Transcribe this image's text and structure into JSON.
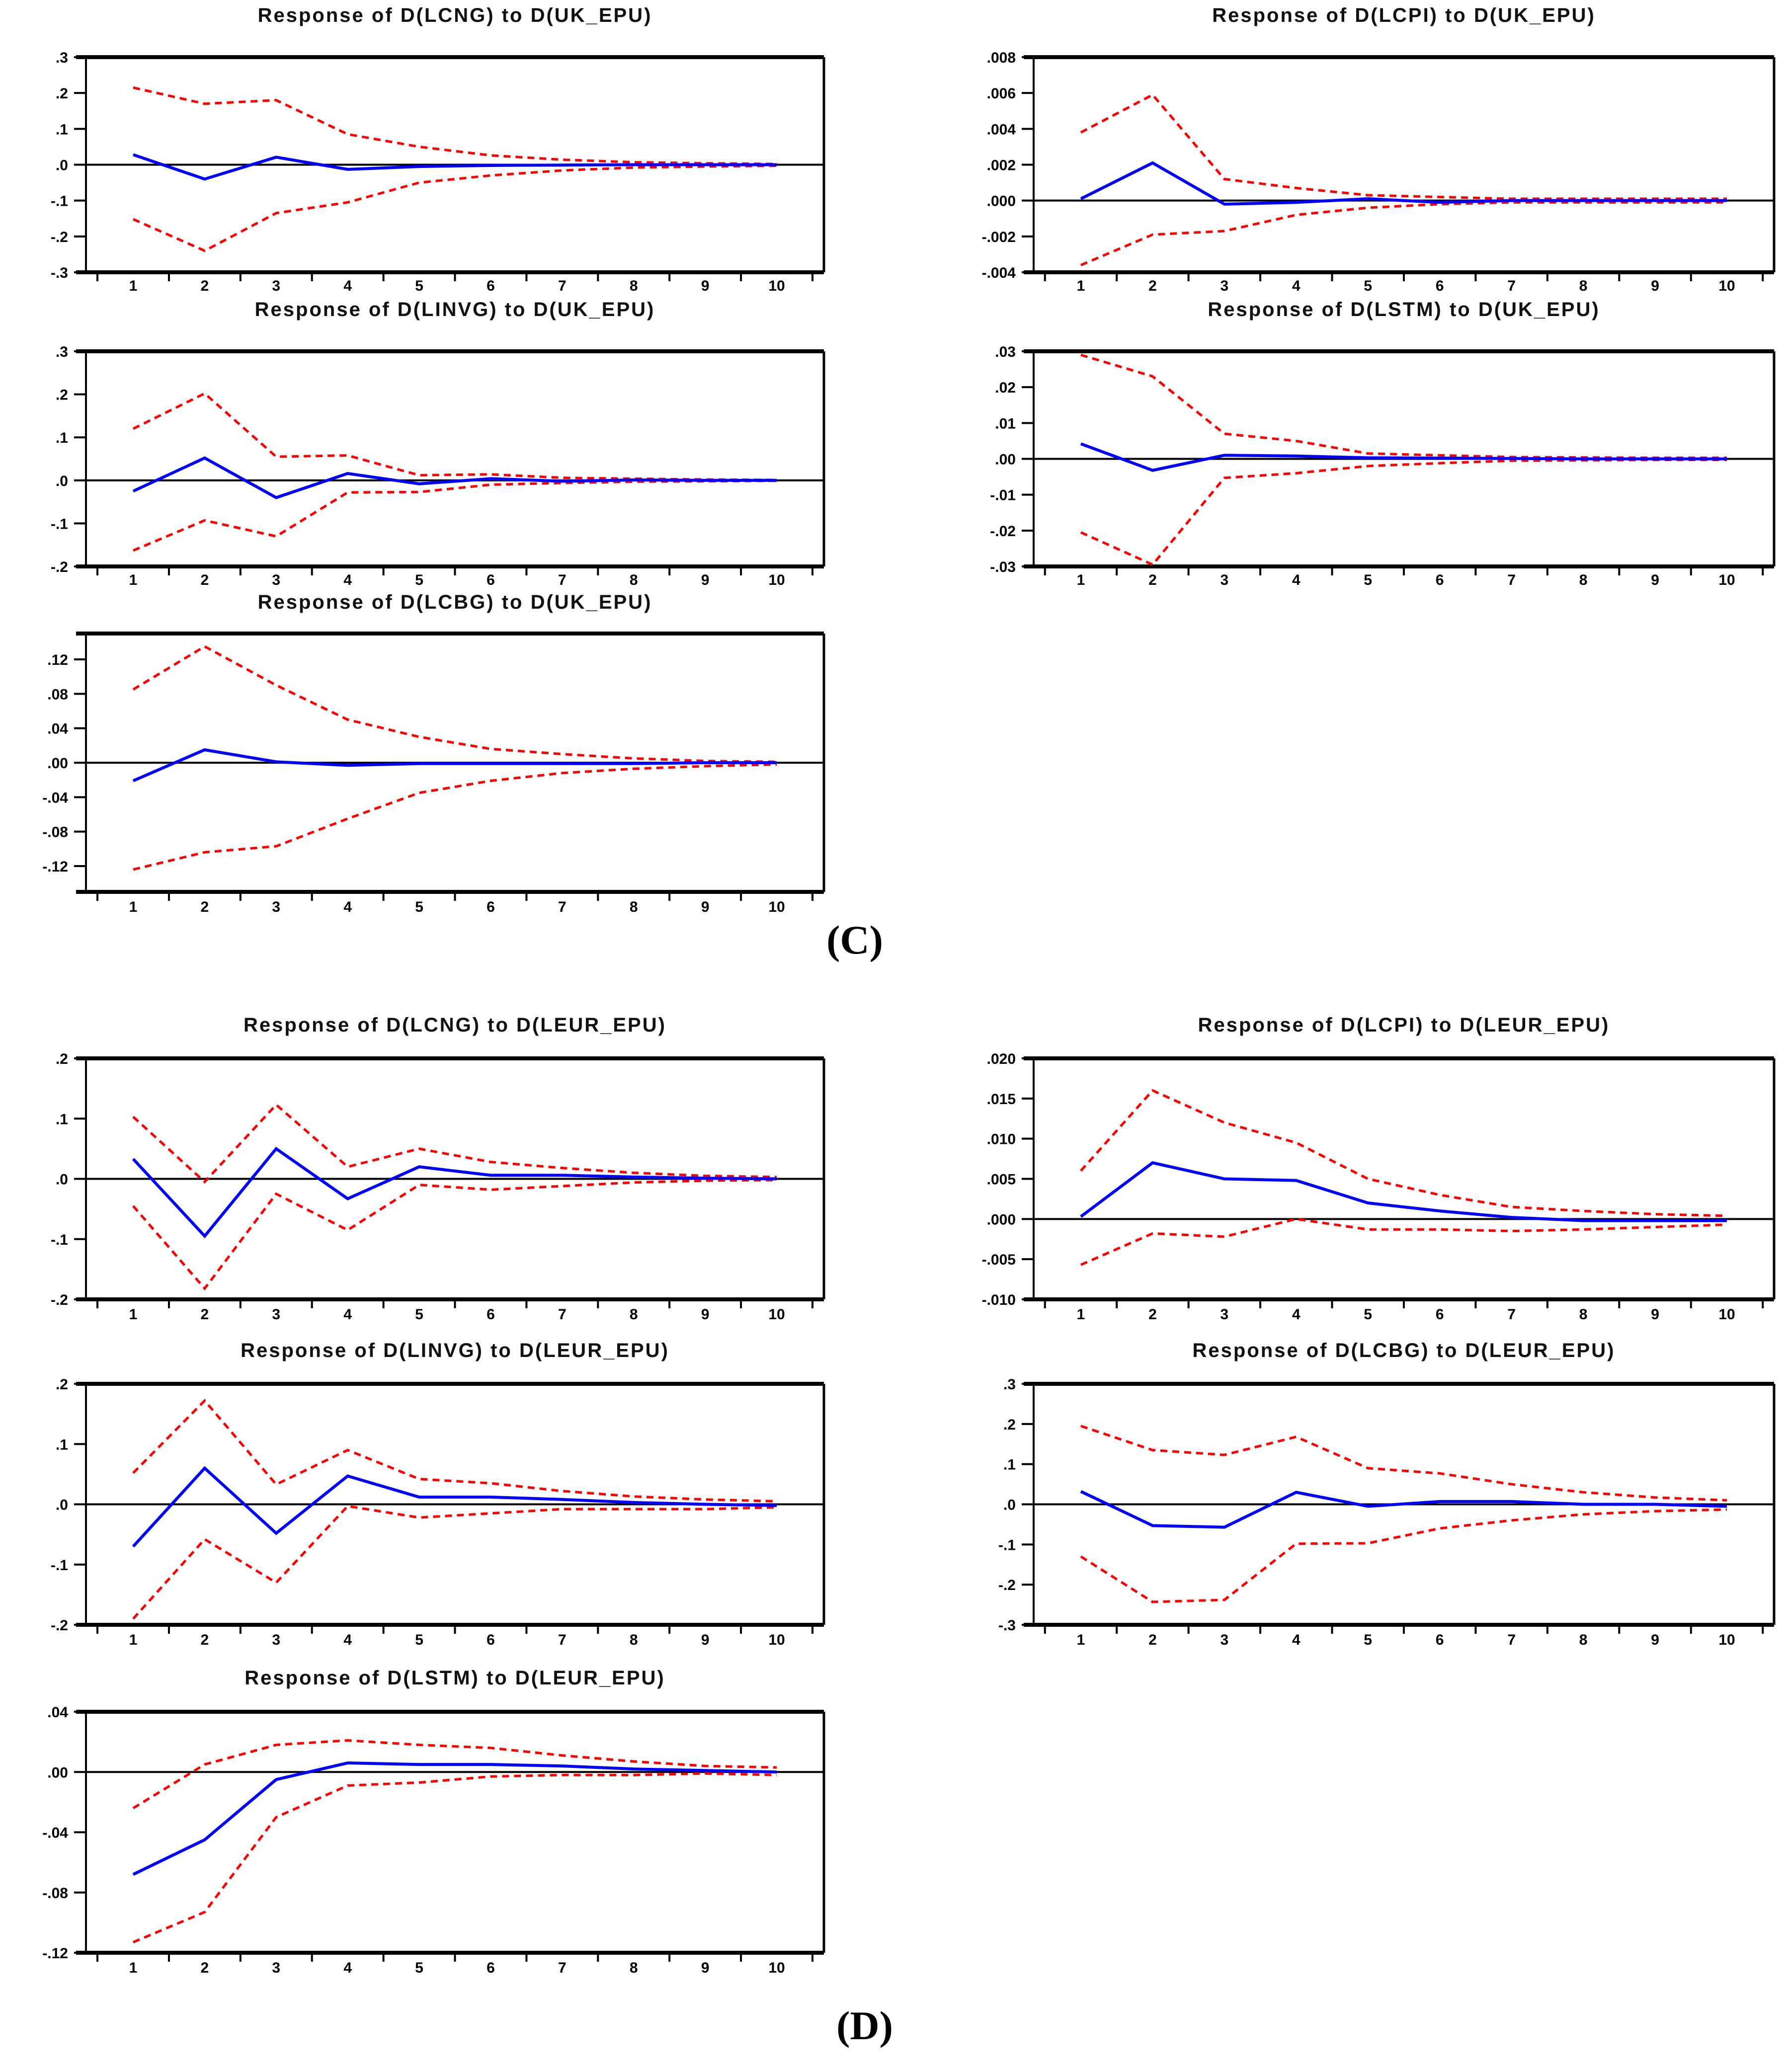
{
  "figure": {
    "description": "Impulse response function charts with blue response line and red dashed confidence bands",
    "x_axis_labels": [
      "1",
      "2",
      "3",
      "4",
      "5",
      "6",
      "7",
      "8",
      "9",
      "10"
    ],
    "response_color": "#0000ff",
    "band_color": "#ff0000",
    "axis_color": "#000000"
  },
  "panel_c_label": "(C)",
  "panel_d_label": "(D)",
  "chart_data": [
    {
      "type": "line",
      "panel": "C",
      "title": "Response of D(LCNG) to D(UK_EPU)",
      "x": [
        1,
        2,
        3,
        4,
        5,
        6,
        7,
        8,
        9,
        10
      ],
      "ylim": [
        -0.3,
        0.3
      ],
      "yticks": [
        {
          "v": 0.3,
          "label": ".3"
        },
        {
          "v": 0.2,
          "label": ".2"
        },
        {
          "v": 0.1,
          "label": ".1"
        },
        {
          "v": 0.0,
          "label": ".0"
        },
        {
          "v": -0.1,
          "label": "-.1"
        },
        {
          "v": -0.2,
          "label": "-.2"
        },
        {
          "v": -0.3,
          "label": "-.3"
        }
      ],
      "series": [
        {
          "name": "response",
          "values": [
            0.028,
            -0.04,
            0.021,
            -0.013,
            -0.005,
            -0.002,
            -0.001,
            0,
            0,
            0
          ]
        },
        {
          "name": "upper_band",
          "values": [
            0.215,
            0.17,
            0.18,
            0.085,
            0.05,
            0.026,
            0.014,
            0.007,
            0.004,
            0.002
          ]
        },
        {
          "name": "lower_band",
          "values": [
            -0.152,
            -0.24,
            -0.135,
            -0.105,
            -0.05,
            -0.03,
            -0.016,
            -0.008,
            -0.005,
            -0.003
          ]
        }
      ]
    },
    {
      "type": "line",
      "panel": "C",
      "title": "Response of D(LCPI) to D(UK_EPU)",
      "x": [
        1,
        2,
        3,
        4,
        5,
        6,
        7,
        8,
        9,
        10
      ],
      "ylim": [
        -0.004,
        0.008
      ],
      "yticks": [
        {
          "v": 0.008,
          "label": ".008"
        },
        {
          "v": 0.006,
          "label": ".006"
        },
        {
          "v": 0.004,
          "label": ".004"
        },
        {
          "v": 0.002,
          "label": ".002"
        },
        {
          "v": 0.0,
          "label": ".000"
        },
        {
          "v": -0.002,
          "label": "-.002"
        },
        {
          "v": -0.004,
          "label": "-.004"
        }
      ],
      "series": [
        {
          "name": "response",
          "values": [
            0.0001,
            0.0021,
            -0.0002,
            -0.0001,
            0.0001,
            -0.0001,
            0,
            0,
            0,
            0
          ]
        },
        {
          "name": "upper_band",
          "values": [
            0.0038,
            0.0059,
            0.0012,
            0.0007,
            0.0003,
            0.0002,
            0.0001,
            0.0001,
            0.0001,
            0.0001
          ]
        },
        {
          "name": "lower_band",
          "values": [
            -0.0036,
            -0.0019,
            -0.0017,
            -0.0008,
            -0.0004,
            -0.0002,
            -0.0001,
            -0.0001,
            -0.0001,
            -0.0001
          ]
        }
      ]
    },
    {
      "type": "line",
      "panel": "C",
      "title": "Response of D(LINVG) to D(UK_EPU)",
      "x": [
        1,
        2,
        3,
        4,
        5,
        6,
        7,
        8,
        9,
        10
      ],
      "ylim": [
        -0.2,
        0.3
      ],
      "yticks": [
        {
          "v": 0.3,
          "label": ".3"
        },
        {
          "v": 0.2,
          "label": ".2"
        },
        {
          "v": 0.1,
          "label": ".1"
        },
        {
          "v": 0.0,
          "label": ".0"
        },
        {
          "v": -0.1,
          "label": "-.1"
        },
        {
          "v": -0.2,
          "label": "-.2"
        }
      ],
      "series": [
        {
          "name": "response",
          "values": [
            -0.025,
            0.052,
            -0.04,
            0.016,
            -0.008,
            0.004,
            -0.002,
            0.001,
            0,
            0
          ]
        },
        {
          "name": "upper_band",
          "values": [
            0.12,
            0.202,
            0.055,
            0.058,
            0.012,
            0.014,
            0.006,
            0.004,
            0.002,
            0.001
          ]
        },
        {
          "name": "lower_band",
          "values": [
            -0.163,
            -0.093,
            -0.13,
            -0.028,
            -0.027,
            -0.01,
            -0.006,
            -0.003,
            -0.002,
            -0.001
          ]
        }
      ]
    },
    {
      "type": "line",
      "panel": "C",
      "title": "Response of D(LSTM) to D(UK_EPU)",
      "x": [
        1,
        2,
        3,
        4,
        5,
        6,
        7,
        8,
        9,
        10
      ],
      "ylim": [
        -0.03,
        0.03
      ],
      "yticks": [
        {
          "v": 0.03,
          "label": ".03"
        },
        {
          "v": 0.02,
          "label": ".02"
        },
        {
          "v": 0.01,
          "label": ".01"
        },
        {
          "v": 0.0,
          "label": ".00"
        },
        {
          "v": -0.01,
          "label": "-.01"
        },
        {
          "v": -0.02,
          "label": "-.02"
        },
        {
          "v": -0.03,
          "label": "-.03"
        }
      ],
      "series": [
        {
          "name": "response",
          "values": [
            0.0042,
            -0.0032,
            0.001,
            0.0008,
            0.0003,
            0.0002,
            0.0001,
            0,
            0,
            0
          ]
        },
        {
          "name": "upper_band",
          "values": [
            0.029,
            0.023,
            0.007,
            0.005,
            0.0015,
            0.001,
            0.0005,
            0.0004,
            0.0003,
            0.0003
          ]
        },
        {
          "name": "lower_band",
          "values": [
            -0.0205,
            -0.0295,
            -0.0053,
            -0.004,
            -0.002,
            -0.0012,
            -0.0005,
            -0.0004,
            -0.0003,
            -0.0003
          ]
        }
      ]
    },
    {
      "type": "line",
      "panel": "C",
      "title": "Response of D(LCBG) to D(UK_EPU)",
      "x": [
        1,
        2,
        3,
        4,
        5,
        6,
        7,
        8,
        9,
        10
      ],
      "ylim": [
        -0.15,
        0.15
      ],
      "yticks": [
        {
          "v": 0.12,
          "label": ".12"
        },
        {
          "v": 0.08,
          "label": ".08"
        },
        {
          "v": 0.04,
          "label": ".04"
        },
        {
          "v": 0.0,
          "label": ".00"
        },
        {
          "v": -0.04,
          "label": "-.04"
        },
        {
          "v": -0.08,
          "label": "-.08"
        },
        {
          "v": -0.12,
          "label": "-.12"
        }
      ],
      "series": [
        {
          "name": "response",
          "values": [
            -0.021,
            0.015,
            0.001,
            -0.003,
            -0.001,
            -0.001,
            -0.001,
            -0.001,
            0,
            0
          ]
        },
        {
          "name": "upper_band",
          "values": [
            0.085,
            0.135,
            0.09,
            0.05,
            0.03,
            0.016,
            0.01,
            0.005,
            0.002,
            0.001
          ]
        },
        {
          "name": "lower_band",
          "values": [
            -0.124,
            -0.104,
            -0.097,
            -0.065,
            -0.035,
            -0.021,
            -0.012,
            -0.007,
            -0.004,
            -0.002
          ]
        }
      ]
    },
    {
      "type": "line",
      "panel": "D",
      "title": "Response of D(LCNG) to D(LEUR_EPU)",
      "x": [
        1,
        2,
        3,
        4,
        5,
        6,
        7,
        8,
        9,
        10
      ],
      "ylim": [
        -0.2,
        0.2
      ],
      "yticks": [
        {
          "v": 0.2,
          "label": ".2"
        },
        {
          "v": 0.1,
          "label": ".1"
        },
        {
          "v": 0.0,
          "label": ".0"
        },
        {
          "v": -0.1,
          "label": "-.1"
        },
        {
          "v": -0.2,
          "label": "-.2"
        }
      ],
      "series": [
        {
          "name": "response",
          "values": [
            0.033,
            -0.095,
            0.05,
            -0.033,
            0.02,
            0.006,
            0.006,
            0.003,
            0.001,
            0
          ]
        },
        {
          "name": "upper_band",
          "values": [
            0.103,
            -0.005,
            0.123,
            0.02,
            0.05,
            0.028,
            0.018,
            0.01,
            0.005,
            0.003
          ]
        },
        {
          "name": "lower_band",
          "values": [
            -0.045,
            -0.182,
            -0.025,
            -0.085,
            -0.01,
            -0.018,
            -0.012,
            -0.006,
            -0.003,
            -0.002
          ]
        }
      ]
    },
    {
      "type": "line",
      "panel": "D",
      "title": "Response of D(LCPI) to D(LEUR_EPU)",
      "x": [
        1,
        2,
        3,
        4,
        5,
        6,
        7,
        8,
        9,
        10
      ],
      "ylim": [
        -0.01,
        0.02
      ],
      "yticks": [
        {
          "v": 0.02,
          "label": ".020"
        },
        {
          "v": 0.015,
          "label": ".015"
        },
        {
          "v": 0.01,
          "label": ".010"
        },
        {
          "v": 0.005,
          "label": ".005"
        },
        {
          "v": 0.0,
          "label": ".000"
        },
        {
          "v": -0.005,
          "label": "-.005"
        },
        {
          "v": -0.01,
          "label": "-.010"
        }
      ],
      "series": [
        {
          "name": "response",
          "values": [
            0.0003,
            0.007,
            0.005,
            0.0048,
            0.002,
            0.001,
            0.0002,
            -0.0002,
            -0.0002,
            -0.0002
          ]
        },
        {
          "name": "upper_band",
          "values": [
            0.006,
            0.016,
            0.012,
            0.0095,
            0.005,
            0.003,
            0.0015,
            0.001,
            0.0006,
            0.0004
          ]
        },
        {
          "name": "lower_band",
          "values": [
            -0.0057,
            -0.0018,
            -0.0022,
            0.0,
            -0.0013,
            -0.0013,
            -0.0015,
            -0.0013,
            -0.001,
            -0.0007
          ]
        }
      ]
    },
    {
      "type": "line",
      "panel": "D",
      "title": "Response of D(LINVG) to D(LEUR_EPU)",
      "x": [
        1,
        2,
        3,
        4,
        5,
        6,
        7,
        8,
        9,
        10
      ],
      "ylim": [
        -0.2,
        0.2
      ],
      "yticks": [
        {
          "v": 0.2,
          "label": ".2"
        },
        {
          "v": 0.1,
          "label": ".1"
        },
        {
          "v": 0.0,
          "label": ".0"
        },
        {
          "v": -0.1,
          "label": "-.1"
        },
        {
          "v": -0.2,
          "label": "-.2"
        }
      ],
      "series": [
        {
          "name": "response",
          "values": [
            -0.07,
            0.06,
            -0.048,
            0.047,
            0.012,
            0.012,
            0.008,
            0.003,
            0,
            -0.002
          ]
        },
        {
          "name": "upper_band",
          "values": [
            0.052,
            0.172,
            0.033,
            0.09,
            0.042,
            0.035,
            0.022,
            0.013,
            0.008,
            0.005
          ]
        },
        {
          "name": "lower_band",
          "values": [
            -0.19,
            -0.058,
            -0.13,
            -0.003,
            -0.022,
            -0.015,
            -0.008,
            -0.008,
            -0.008,
            -0.005
          ]
        }
      ]
    },
    {
      "type": "line",
      "panel": "D",
      "title": "Response of D(LCBG) to D(LEUR_EPU)",
      "x": [
        1,
        2,
        3,
        4,
        5,
        6,
        7,
        8,
        9,
        10
      ],
      "ylim": [
        -0.3,
        0.3
      ],
      "yticks": [
        {
          "v": 0.3,
          "label": ".3"
        },
        {
          "v": 0.2,
          "label": ".2"
        },
        {
          "v": 0.1,
          "label": ".1"
        },
        {
          "v": 0.0,
          "label": ".0"
        },
        {
          "v": -0.1,
          "label": "-.1"
        },
        {
          "v": -0.2,
          "label": "-.2"
        },
        {
          "v": -0.3,
          "label": "-.3"
        }
      ],
      "series": [
        {
          "name": "response",
          "values": [
            0.032,
            -0.053,
            -0.057,
            0.03,
            -0.005,
            0.007,
            0.007,
            0,
            0,
            -0.005
          ]
        },
        {
          "name": "upper_band",
          "values": [
            0.195,
            0.135,
            0.123,
            0.168,
            0.09,
            0.077,
            0.05,
            0.03,
            0.017,
            0.01
          ]
        },
        {
          "name": "lower_band",
          "values": [
            -0.13,
            -0.243,
            -0.238,
            -0.098,
            -0.097,
            -0.06,
            -0.04,
            -0.025,
            -0.017,
            -0.013
          ]
        }
      ]
    },
    {
      "type": "line",
      "panel": "D",
      "title": "Response of D(LSTM) to D(LEUR_EPU)",
      "x": [
        1,
        2,
        3,
        4,
        5,
        6,
        7,
        8,
        9,
        10
      ],
      "ylim": [
        -0.12,
        0.04
      ],
      "yticks": [
        {
          "v": 0.04,
          "label": ".04"
        },
        {
          "v": 0.0,
          "label": ".00"
        },
        {
          "v": -0.04,
          "label": "-.04"
        },
        {
          "v": -0.08,
          "label": "-.08"
        },
        {
          "v": -0.12,
          "label": "-.12"
        }
      ],
      "series": [
        {
          "name": "response",
          "values": [
            -0.068,
            -0.045,
            -0.005,
            0.006,
            0.005,
            0.005,
            0.004,
            0.002,
            0.001,
            0
          ]
        },
        {
          "name": "upper_band",
          "values": [
            -0.024,
            0.005,
            0.018,
            0.021,
            0.018,
            0.016,
            0.011,
            0.007,
            0.004,
            0.003
          ]
        },
        {
          "name": "lower_band",
          "values": [
            -0.113,
            -0.093,
            -0.03,
            -0.009,
            -0.007,
            -0.003,
            -0.002,
            -0.002,
            -0.001,
            -0.002
          ]
        }
      ]
    }
  ]
}
